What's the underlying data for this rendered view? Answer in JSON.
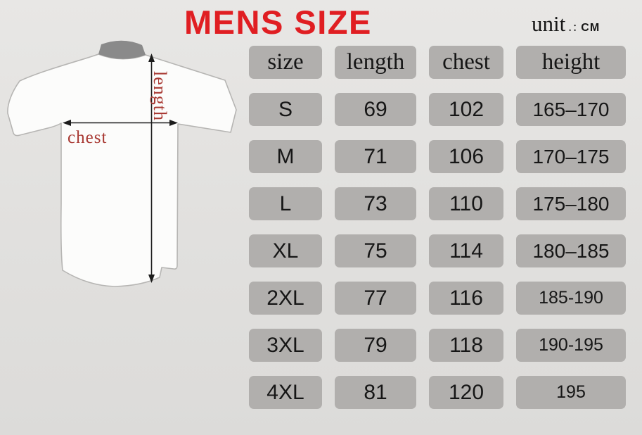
{
  "title": "MENS SIZE",
  "unit": {
    "label": "unit",
    "separator": ".:",
    "value": "CM"
  },
  "diagram": {
    "length_label": "length",
    "chest_label": "chest"
  },
  "table": {
    "headers": [
      "size",
      "length",
      "chest",
      "height"
    ],
    "rows": [
      {
        "size": "S",
        "length": "69",
        "chest": "102",
        "height": "165–170"
      },
      {
        "size": "M",
        "length": "71",
        "chest": "106",
        "height": "170–175"
      },
      {
        "size": "L",
        "length": "73",
        "chest": "110",
        "height": "175–180"
      },
      {
        "size": "XL",
        "length": "75",
        "chest": "114",
        "height": "180–185"
      },
      {
        "size": "2XL",
        "length": "77",
        "chest": "116",
        "height": "185-190"
      },
      {
        "size": "3XL",
        "length": "79",
        "chest": "118",
        "height": "190-195"
      },
      {
        "size": "4XL",
        "length": "81",
        "chest": "120",
        "height": "195"
      }
    ]
  },
  "colors": {
    "title_red": "#e01e22",
    "label_red": "#a93a34",
    "cell_gray": "#b1afad",
    "collar_gray": "#8a8a8a",
    "text_black": "#161616",
    "background": "#e2e1df"
  }
}
